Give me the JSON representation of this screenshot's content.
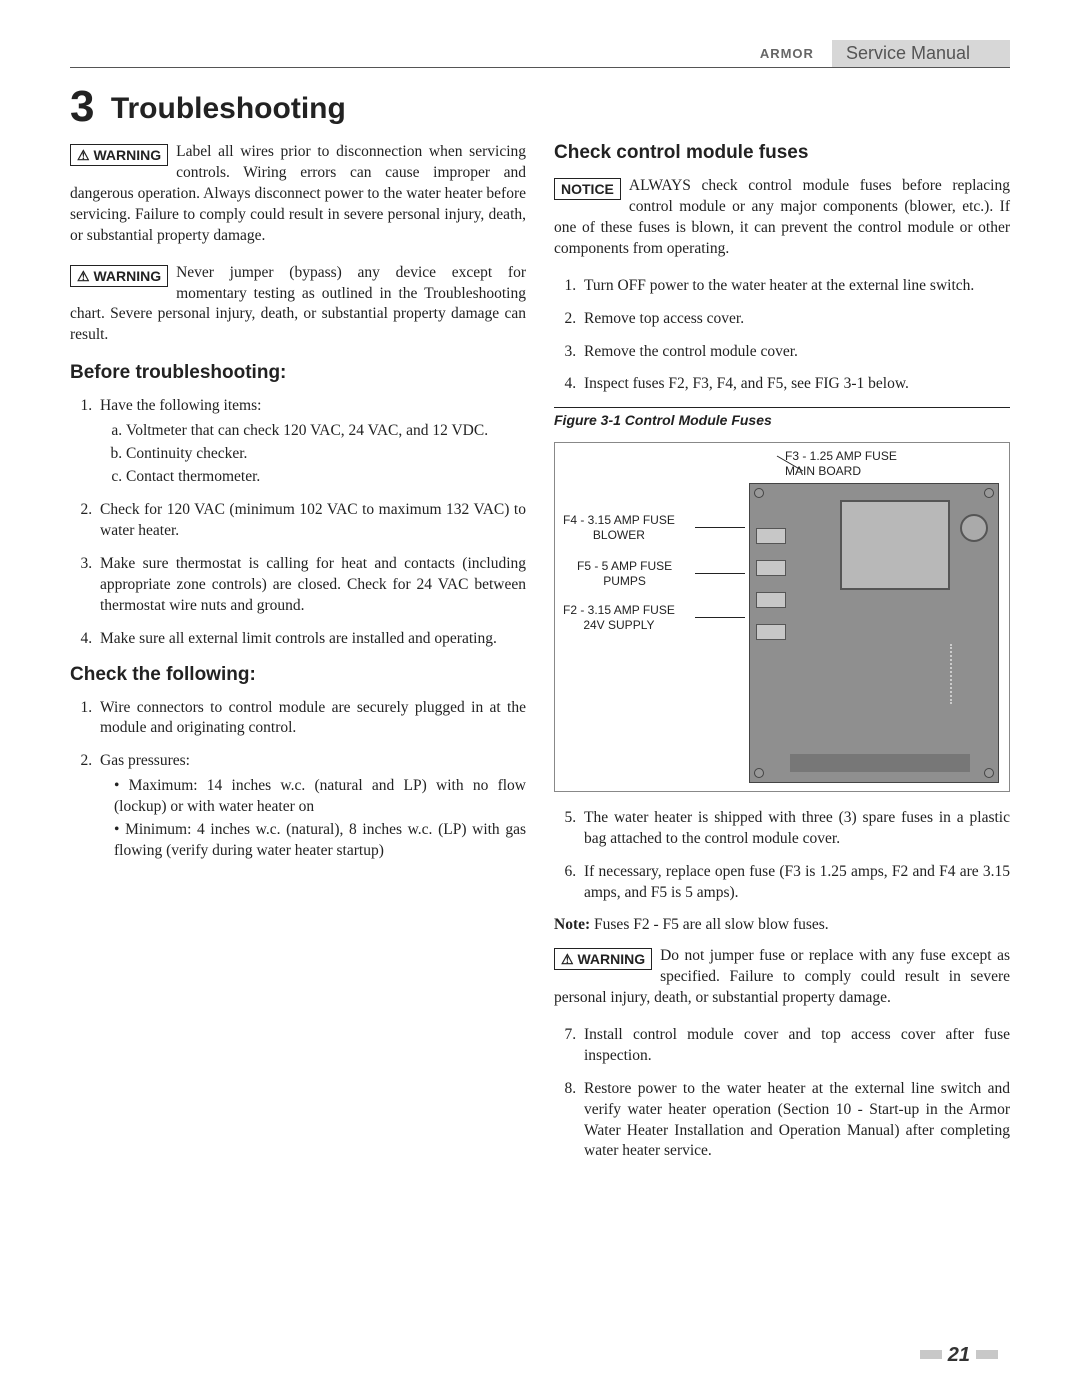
{
  "header": {
    "logo_text": "ARMOR",
    "manual": "Service Manual"
  },
  "chapter": {
    "number": "3",
    "title": "Troubleshooting"
  },
  "left": {
    "warning1_label": "⚠ WARNING",
    "warning1_text": "Label all wires prior to disconnection when servicing controls. Wiring errors can cause improper and dangerous operation. Always disconnect power to the water heater before servicing. Failure to comply could result in severe personal injury, death, or substantial property damage.",
    "warning2_label": "⚠ WARNING",
    "warning2_text": "Never jumper (bypass) any device except for momentary testing as outlined in the Troubleshooting chart. Severe personal injury, death, or substantial property damage can result.",
    "before_heading": "Before troubleshooting:",
    "before": {
      "item1": "Have the following items:",
      "item1a": "Voltmeter that can check 120 VAC, 24 VAC, and 12 VDC.",
      "item1b": "Continuity checker.",
      "item1c": "Contact thermometer.",
      "item2": "Check for 120 VAC (minimum 102 VAC to maximum 132 VAC) to water heater.",
      "item3": "Make sure thermostat is calling for heat and contacts (including appropriate zone controls) are closed. Check for 24 VAC between thermostat wire nuts and ground.",
      "item4": "Make sure all external limit controls are installed and operating."
    },
    "check_heading": "Check the following:",
    "check": {
      "item1": "Wire connectors to control module are securely plugged in at the module and originating control.",
      "item2": "Gas pressures:",
      "item2a": "Maximum: 14 inches w.c. (natural and LP) with no flow (lockup) or with water heater on",
      "item2b": "Minimum: 4 inches w.c. (natural), 8 inches w.c. (LP) with gas flowing (verify during water heater startup)"
    }
  },
  "right": {
    "fuses_heading": "Check control module fuses",
    "notice_label": "NOTICE",
    "notice_text": "ALWAYS check control module fuses before replacing control module or any major components (blower, etc.). If one of these fuses is blown, it can prevent the control module or other components from operating.",
    "steps": {
      "s1": "Turn OFF power to the water heater at the external line switch.",
      "s2": "Remove top access cover.",
      "s3": "Remove the control module cover.",
      "s4": "Inspect fuses F2, F3, F4, and F5, see FIG 3-1 below.",
      "s5": "The water heater is shipped with three (3) spare fuses in a plastic bag attached to the control module cover.",
      "s6": "If necessary, replace open fuse (F3 is 1.25 amps, F2 and F4 are 3.15 amps, and F5 is 5 amps).",
      "s7": "Install control module cover and top access cover after fuse inspection.",
      "s8": "Restore power to the water heater at the external line switch and verify water heater operation (Section 10 - Start-up in the Armor Water Heater Installation and Operation Manual) after completing water heater service."
    },
    "figure_caption": "Figure 3-1 Control Module Fuses",
    "fig_labels": {
      "f3": "F3 - 1.25 AMP FUSE\nMAIN BOARD",
      "f4": "F4 - 3.15 AMP FUSE\nBLOWER",
      "f5": "F5 - 5 AMP FUSE\nPUMPS",
      "f2": "F2 - 3.15 AMP FUSE\n24V SUPPLY"
    },
    "note_bold": "Note:",
    "note_text": "Fuses F2 - F5 are all slow blow fuses.",
    "warning3_label": "⚠ WARNING",
    "warning3_text": "Do not jumper fuse or replace with any fuse except as specified. Failure to comply could result in severe personal injury, death, or substantial property damage."
  },
  "page_number": "21",
  "figure_style": {
    "board_color": "#8f8f8f",
    "border_color": "#888"
  }
}
